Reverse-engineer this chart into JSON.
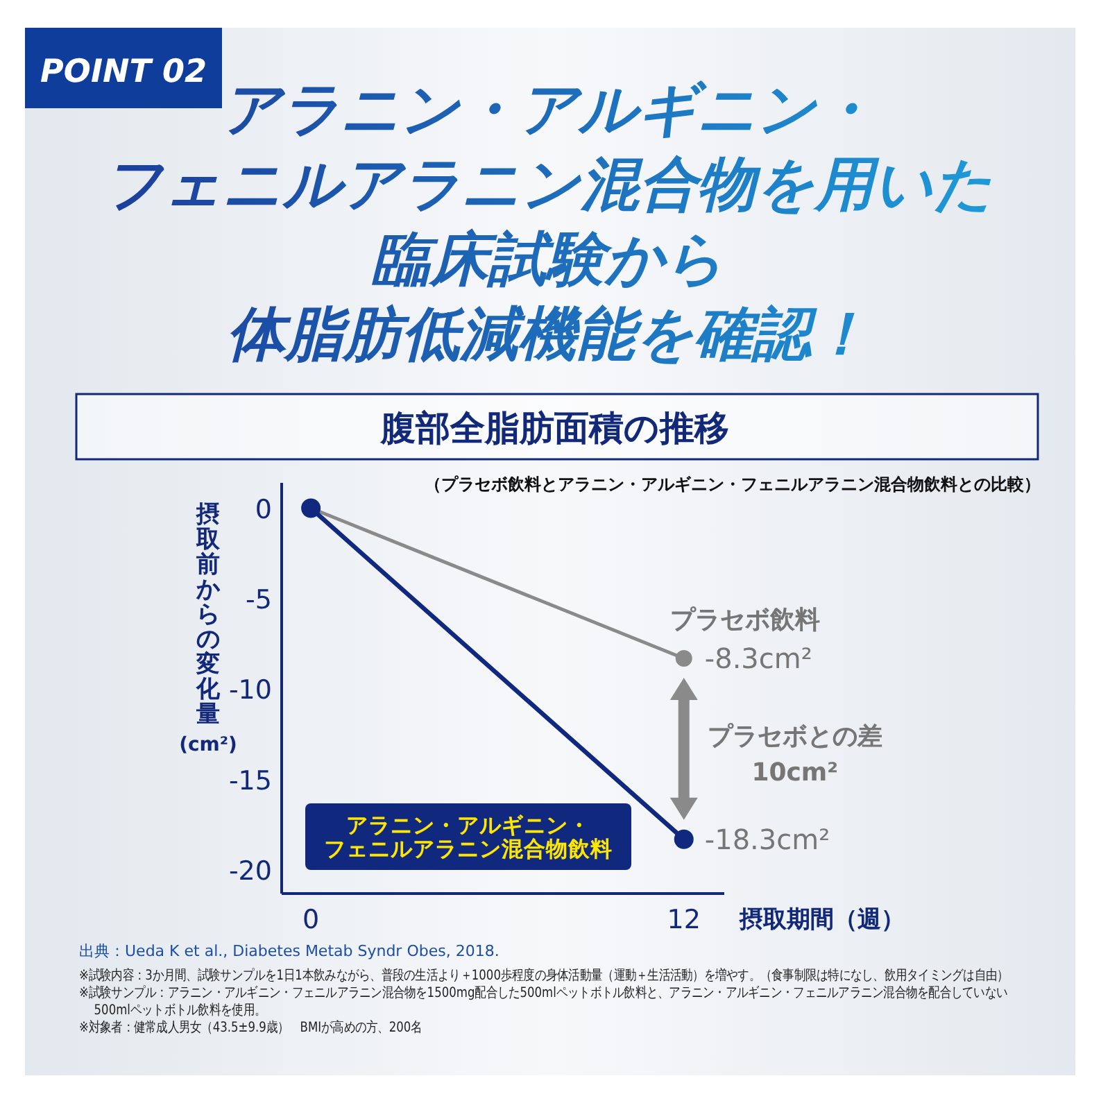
{
  "chart_data": {
    "type": "line",
    "title": "アラニン・アルギニン・フェニルアラニン混合物を用いた臨床試験から体脂肪低減機能を確認！",
    "subtitle": "腹部全脂肪面積の推移",
    "xlabel": "摂取期間（週）",
    "ylabel": "摂取前からの変化量(cm²)",
    "x": [
      0,
      12
    ],
    "xlim": [
      -0.94,
      13.3
    ],
    "xticks": [
      0,
      12
    ],
    "ylim": [
      -21.3,
      1.4
    ],
    "yticks": [
      0,
      -5,
      -10,
      -15,
      -20
    ],
    "marker": "circle",
    "line_style": "solid",
    "series": [
      {
        "name": "プラセボ飲料",
        "color": "#8a8a8a",
        "values": [
          0,
          -8.3
        ],
        "value_labels": [
          null,
          "-8.3cm²"
        ]
      },
      {
        "name": "アラニン・アルギニン・フェニルアラニン混合物飲料",
        "color": "#10297e",
        "values": [
          0,
          -18.3
        ],
        "value_labels": [
          null,
          "-18.3cm²"
        ]
      }
    ],
    "annotations": [
      "POINT 02",
      "（プラセボ飲料とアラニン・アルギニン・フェニルアラニン混合物飲料との比較）",
      "プラセボとの差10cm²",
      "出典：Ueda K et al., Diabetes Metab Syndr Obes, 2018.",
      "※試験内容：3か月間、試験サンプルを1日1本飲みながら、普段の生活より＋1000歩程度の身体活動量（運動＋生活活動）を増やす。（食事制限は特になし、飲用タイミングは自由）",
      "※試験サンプル：アラニン・アルギニン・フェニルアラニン混合物を1500mg配合した500mlペットボトル飲料と、アラニン・アルギニン・フェニルアラニン混合物を配合していない500mlペットボトル飲料を使用。",
      "※対象者：健常成人男女（43.5±9.9歳）　BMIが高めの方、200名"
    ]
  }
}
